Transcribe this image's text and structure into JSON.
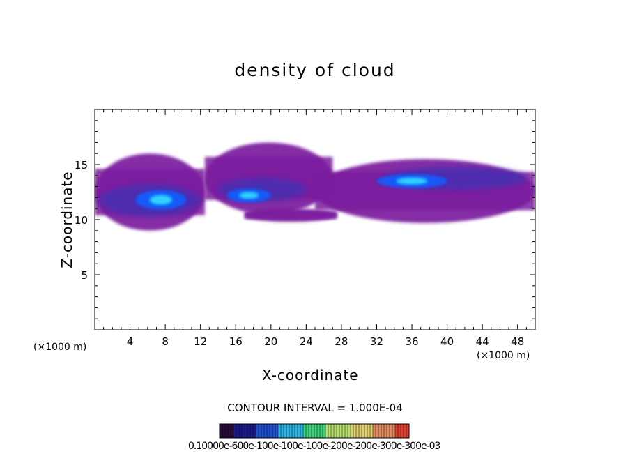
{
  "chart_data": {
    "type": "heatmap",
    "title": "density of cloud",
    "xlabel": "X-coordinate",
    "ylabel": "Z-coordinate",
    "x_unit_label_left": "(×1000 m)",
    "x_unit_label_right": "(×1000 m)",
    "xlim": [
      0,
      50
    ],
    "ylim": [
      0,
      20
    ],
    "x_ticks": [
      "4",
      "8",
      "12",
      "16",
      "20",
      "24",
      "28",
      "32",
      "36",
      "40",
      "44",
      "48"
    ],
    "y_ticks": [
      "5",
      "10",
      "15"
    ],
    "contour_interval_label": "CONTOUR INTERVAL = 1.000E-04",
    "colorbar_labels_text": "0.10000e-600e-100e-100e-100e-200e-200e-300e-300e-03",
    "colorbar_colors": [
      "#2a0a3a",
      "#1a1a8a",
      "#1f4fcf",
      "#28b3e0",
      "#3ed07a",
      "#b8e070",
      "#e0d070",
      "#e08a60",
      "#e04030"
    ],
    "colors": {
      "background_cloud": "#7a1f9e",
      "dense_core": "#1060ff",
      "peak": "#35e8ff"
    },
    "cloud_regions": [
      {
        "name": "left-cloud-base",
        "x": [
          0,
          12.5
        ],
        "z": [
          9,
          16
        ]
      },
      {
        "name": "middle-cloud",
        "x": [
          12.5,
          27
        ],
        "z": [
          10.5,
          17
        ]
      },
      {
        "name": "lower-middle-layer",
        "x": [
          17,
          27.5
        ],
        "z": [
          9.8,
          11
        ]
      },
      {
        "name": "right-cloud",
        "x": [
          25,
          50
        ],
        "z": [
          9.7,
          15.5
        ]
      }
    ],
    "dense_cores": [
      {
        "name": "core-left",
        "x": [
          0.5,
          12
        ],
        "z": [
          10,
          13.5
        ],
        "peak_x": 7.5,
        "peak_z": 11.8
      },
      {
        "name": "core-middle",
        "x": [
          14,
          24
        ],
        "z": [
          11.5,
          14
        ],
        "peak_x": 17.5,
        "peak_z": 12.2
      },
      {
        "name": "core-right",
        "x": [
          33,
          49
        ],
        "z": [
          12.5,
          15
        ],
        "peak_x": 36,
        "peak_z": 13.5
      }
    ]
  }
}
